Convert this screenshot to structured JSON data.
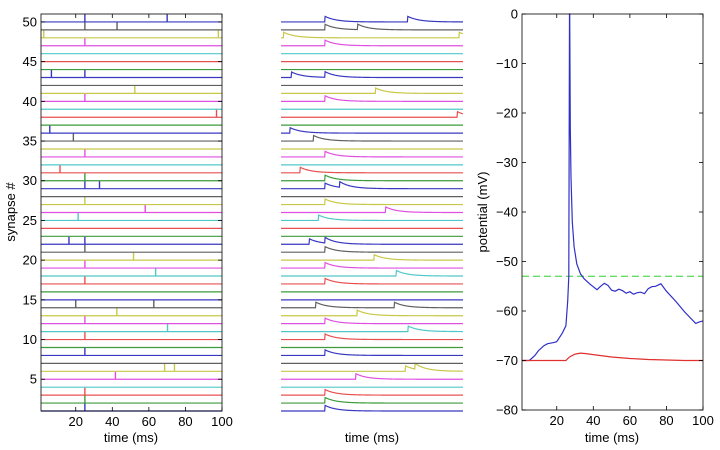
{
  "chart_data": [
    {
      "type": "raster",
      "title": "",
      "xlabel": "time (ms)",
      "ylabel": "synapse #",
      "xlim": [
        1,
        100
      ],
      "ylim": [
        1,
        51
      ],
      "xticks": [
        20,
        40,
        60,
        80,
        100
      ],
      "yticks": [
        5,
        10,
        15,
        20,
        25,
        30,
        35,
        40,
        45,
        50
      ],
      "color_cycle": [
        "#3838c0",
        "#3c9c3c",
        "#e85050",
        "#50c8c8",
        "#e050e0",
        "#c8c848",
        "#606060"
      ],
      "spike_times": {
        "1": [
          25
        ],
        "2": [
          25
        ],
        "3": [
          25
        ],
        "4": [],
        "5": [
          41.7
        ],
        "6": [
          68.6,
          74
        ],
        "7": [],
        "8": [
          25
        ],
        "9": [],
        "10": [
          25
        ],
        "11": [
          70.2
        ],
        "12": [
          25
        ],
        "13": [
          42.5
        ],
        "14": [
          20,
          62.7
        ],
        "15": [],
        "16": [],
        "17": [
          25
        ],
        "18": [
          63.7
        ],
        "19": [
          25
        ],
        "20": [
          51.6
        ],
        "21": [
          25
        ],
        "22": [
          16.3,
          25
        ],
        "23": [],
        "24": [],
        "25": [
          21.3
        ],
        "26": [
          58
        ],
        "27": [
          25
        ],
        "28": [],
        "29": [
          25,
          33
        ],
        "30": [
          25
        ],
        "31": [
          11.4
        ],
        "32": [],
        "33": [
          25
        ],
        "34": [],
        "35": [
          18.7
        ],
        "36": [
          5.8
        ],
        "37": [],
        "38": [
          97
        ],
        "39": [],
        "40": [
          25
        ],
        "41": [
          52.3
        ],
        "42": [],
        "43": [
          6.7,
          25
        ],
        "44": [],
        "45": [],
        "46": [],
        "47": [
          25
        ],
        "48": [
          2.5,
          98
        ],
        "49": [
          25,
          42.6
        ],
        "50": [
          25,
          70
        ]
      }
    },
    {
      "type": "line",
      "title": "",
      "xlabel": "time (ms)",
      "ylabel": "",
      "xlim": [
        1,
        100
      ],
      "description_of_series": "postsynaptic potential trace per synapse, same synapse order and spike times as the raster"
    },
    {
      "type": "line",
      "title": "",
      "xlabel": "time (ms)",
      "ylabel": "potential (mV)",
      "xlim": [
        1,
        100
      ],
      "ylim": [
        -80,
        0
      ],
      "xticks": [
        20,
        40,
        60,
        80,
        100
      ],
      "yticks": [
        0,
        -10,
        -20,
        -30,
        -40,
        -50,
        -60,
        -70,
        -80
      ],
      "threshold": {
        "value": -53,
        "color": "#66dd66",
        "style": "dashed"
      },
      "series": [
        {
          "color": "#3030c8",
          "x": [
            1,
            5,
            8,
            10,
            13,
            15,
            18,
            20,
            23,
            25,
            26,
            26.6,
            27,
            27.1,
            27.4,
            27.8,
            28.5,
            29.5,
            31,
            33,
            35,
            38,
            42,
            44,
            46,
            48,
            50,
            52,
            54,
            56,
            58,
            60,
            62,
            64,
            66,
            68,
            70,
            72,
            74,
            77,
            80,
            85,
            90,
            96,
            98,
            100
          ],
          "y": [
            -70,
            -70,
            -69,
            -68,
            -67,
            -66.6,
            -66.4,
            -66.2,
            -64.5,
            -63,
            -58,
            -53,
            0,
            0,
            -23,
            -33,
            -42,
            -47,
            -50.5,
            -52.5,
            -53.5,
            -54.5,
            -55.7,
            -55,
            -54.4,
            -54.8,
            -55.8,
            -56,
            -55.6,
            -55.9,
            -56.4,
            -56.1,
            -56.6,
            -56.3,
            -56.2,
            -56.5,
            -55.5,
            -55.1,
            -55,
            -54.5,
            -56,
            -58,
            -60.2,
            -62.5,
            -62.2,
            -62
          ]
        },
        {
          "color": "#e03030",
          "x": [
            1,
            25,
            27,
            30,
            33,
            36,
            40,
            50,
            60,
            70,
            80,
            90,
            100
          ],
          "y": [
            -70,
            -70,
            -69.3,
            -68.7,
            -68.5,
            -68.6,
            -68.8,
            -69.3,
            -69.6,
            -69.8,
            -69.9,
            -70,
            -70
          ]
        }
      ]
    }
  ]
}
